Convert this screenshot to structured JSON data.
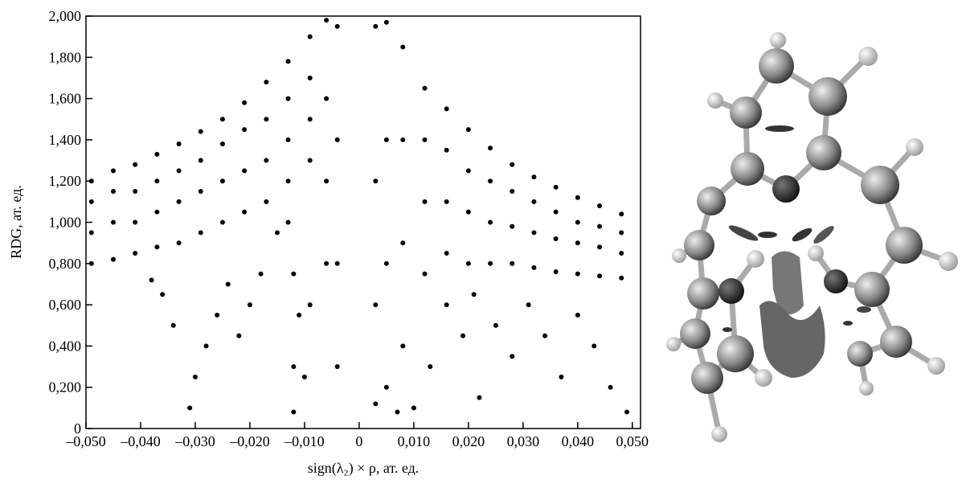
{
  "chart_data": {
    "type": "scatter",
    "xlabel": "sign(λ₂) × ρ, ат. ед.",
    "ylabel": "RDG, ат. ед.",
    "color": "#000000",
    "xlim": [
      -0.05,
      0.0515
    ],
    "ylim": [
      0,
      2.0
    ],
    "xticks": [
      {
        "value": -0.05,
        "label": "–0,050"
      },
      {
        "value": -0.04,
        "label": "–0,040"
      },
      {
        "value": -0.03,
        "label": "–0,030"
      },
      {
        "value": -0.02,
        "label": "–0,020"
      },
      {
        "value": -0.01,
        "label": "–0,010"
      },
      0,
      {
        "value": 0.01,
        "label": "0,010"
      },
      {
        "value": 0.02,
        "label": "0,020"
      },
      {
        "value": 0.03,
        "label": "0,030"
      },
      {
        "value": 0.04,
        "label": "0,040"
      },
      {
        "value": 0.05,
        "label": "0,050"
      }
    ],
    "yticks": [
      0,
      {
        "value": 0.2,
        "label": "0,200"
      },
      {
        "value": 0.4,
        "label": "0,400"
      },
      {
        "value": 0.6,
        "label": "0,600"
      },
      {
        "value": 0.8,
        "label": "0,800"
      },
      {
        "value": 1.0,
        "label": "1,000"
      },
      {
        "value": 1.2,
        "label": "1,200"
      },
      {
        "value": 1.4,
        "label": "1,400"
      },
      {
        "value": 1.6,
        "label": "1,600"
      },
      {
        "value": 1.8,
        "label": "1,800"
      },
      {
        "value": 2.0,
        "label": "2,000"
      }
    ],
    "x": [
      -0.049,
      -0.049,
      -0.049,
      -0.049,
      -0.045,
      -0.045,
      -0.045,
      -0.045,
      -0.041,
      -0.041,
      -0.041,
      -0.041,
      -0.037,
      -0.037,
      -0.037,
      -0.037,
      -0.033,
      -0.033,
      -0.033,
      -0.033,
      -0.029,
      -0.029,
      -0.029,
      -0.029,
      -0.025,
      -0.025,
      -0.025,
      -0.025,
      -0.021,
      -0.021,
      -0.021,
      -0.021,
      -0.017,
      -0.017,
      -0.017,
      -0.017,
      -0.013,
      -0.013,
      -0.013,
      -0.013,
      -0.009,
      -0.009,
      -0.009,
      -0.009,
      -0.006,
      -0.006,
      -0.006,
      -0.006,
      -0.004,
      -0.004,
      -0.004,
      -0.004,
      -0.031,
      -0.03,
      -0.028,
      -0.026,
      -0.024,
      -0.022,
      -0.02,
      -0.034,
      -0.036,
      -0.038,
      -0.018,
      -0.015,
      -0.012,
      -0.012,
      -0.011,
      -0.012,
      -0.013,
      -0.01,
      -0.009,
      0.003,
      0.003,
      0.003,
      0.003,
      0.005,
      0.005,
      0.005,
      0.005,
      0.008,
      0.008,
      0.008,
      0.008,
      0.012,
      0.012,
      0.012,
      0.012,
      0.016,
      0.016,
      0.016,
      0.016,
      0.02,
      0.02,
      0.02,
      0.02,
      0.024,
      0.024,
      0.024,
      0.024,
      0.028,
      0.028,
      0.028,
      0.028,
      0.032,
      0.032,
      0.032,
      0.032,
      0.036,
      0.036,
      0.036,
      0.036,
      0.04,
      0.04,
      0.04,
      0.04,
      0.044,
      0.044,
      0.044,
      0.044,
      0.048,
      0.048,
      0.048,
      0.048,
      0.007,
      0.01,
      0.013,
      0.016,
      0.019,
      0.022,
      0.025,
      0.028,
      0.031,
      0.034,
      0.037,
      0.04,
      0.043,
      0.046,
      0.049,
      0.021
    ],
    "values": [
      0.8,
      0.95,
      1.1,
      1.2,
      0.82,
      1.0,
      1.15,
      1.25,
      0.85,
      1.0,
      1.15,
      1.28,
      0.88,
      1.05,
      1.2,
      1.33,
      0.9,
      1.1,
      1.25,
      1.38,
      0.95,
      1.15,
      1.3,
      1.44,
      1.0,
      1.2,
      1.38,
      1.5,
      1.05,
      1.25,
      1.45,
      1.58,
      1.1,
      1.3,
      1.5,
      1.68,
      1.2,
      1.4,
      1.6,
      1.78,
      1.3,
      1.5,
      1.7,
      1.9,
      0.8,
      1.2,
      1.6,
      1.98,
      0.3,
      0.8,
      1.4,
      1.95,
      0.1,
      0.25,
      0.4,
      0.55,
      0.7,
      0.45,
      0.6,
      0.5,
      0.65,
      0.72,
      0.75,
      0.95,
      0.08,
      0.3,
      0.55,
      0.75,
      1.0,
      0.25,
      0.6,
      0.12,
      0.6,
      1.2,
      1.95,
      0.2,
      0.8,
      1.4,
      1.97,
      0.4,
      0.9,
      1.4,
      1.85,
      0.75,
      1.1,
      1.4,
      1.65,
      0.85,
      1.1,
      1.35,
      1.55,
      0.8,
      1.05,
      1.25,
      1.45,
      0.8,
      1.0,
      1.2,
      1.36,
      0.8,
      0.98,
      1.15,
      1.28,
      0.78,
      0.95,
      1.1,
      1.22,
      0.76,
      0.92,
      1.05,
      1.17,
      0.75,
      0.9,
      1.0,
      1.12,
      0.74,
      0.88,
      0.98,
      1.08,
      0.73,
      0.85,
      0.95,
      1.04,
      0.08,
      0.1,
      0.3,
      0.6,
      0.45,
      0.15,
      0.5,
      0.35,
      0.6,
      0.45,
      0.25,
      0.55,
      0.4,
      0.2,
      0.08,
      0.65
    ]
  }
}
